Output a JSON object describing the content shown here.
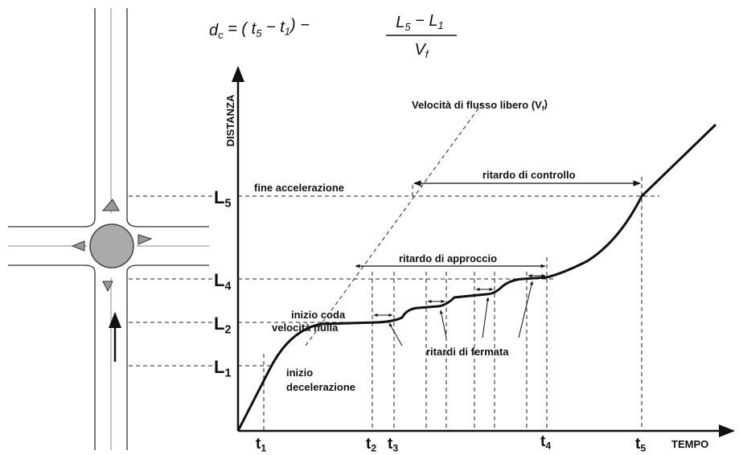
{
  "formula": {
    "line": [
      {
        "t": "d"
      },
      {
        "t": "c",
        "sub": true
      },
      {
        "t": " = ( "
      },
      {
        "t": "t"
      },
      {
        "t": "5",
        "sub": true
      },
      {
        "t": " − "
      },
      {
        "t": "t"
      },
      {
        "t": "1",
        "sub": true
      },
      {
        "t": ") −"
      }
    ],
    "numerator": [
      {
        "t": "L"
      },
      {
        "t": "5",
        "sub": true
      },
      {
        "t": " − "
      },
      {
        "t": "L"
      },
      {
        "t": "1",
        "sub": true
      }
    ],
    "denominator": [
      {
        "t": "V"
      },
      {
        "t": "f",
        "sub": true
      }
    ]
  },
  "axes": {
    "y": "DISTANZA",
    "x": "TEMPO"
  },
  "distance_labels": {
    "L5": [
      {
        "t": "L"
      },
      {
        "t": "5",
        "sub": true
      }
    ],
    "L4": [
      {
        "t": "L"
      },
      {
        "t": "4",
        "sub": true
      }
    ],
    "L2": [
      {
        "t": "L"
      },
      {
        "t": "2",
        "sub": true
      }
    ],
    "L1": [
      {
        "t": "L"
      },
      {
        "t": "1",
        "sub": true
      }
    ]
  },
  "time_labels": {
    "t1": [
      {
        "t": "t"
      },
      {
        "t": "1",
        "sub": true
      }
    ],
    "t2": [
      {
        "t": "t"
      },
      {
        "t": "2",
        "sub": true
      }
    ],
    "t3": [
      {
        "t": "t"
      },
      {
        "t": "3",
        "sub": true
      }
    ],
    "t4": [
      {
        "t": "t"
      },
      {
        "t": "4",
        "sub": true
      }
    ],
    "t5": [
      {
        "t": "t"
      },
      {
        "t": "5",
        "sub": true
      }
    ]
  },
  "annotations": {
    "free_flow": [
      {
        "t": "Velocità di flusso libero (V"
      },
      {
        "t": "f",
        "sub": true
      },
      {
        "t": ")"
      }
    ],
    "end_acceleration": "fine accelerazione",
    "control_delay": "ritardo di controllo",
    "approach_delay": "ritardo di approccio",
    "queue_start_1": "inizio coda",
    "queue_start_2": "velocità nulla",
    "stop_delays": "ritardi di fermata",
    "decel_1": "inizio",
    "decel_2": "decelerazione"
  }
}
